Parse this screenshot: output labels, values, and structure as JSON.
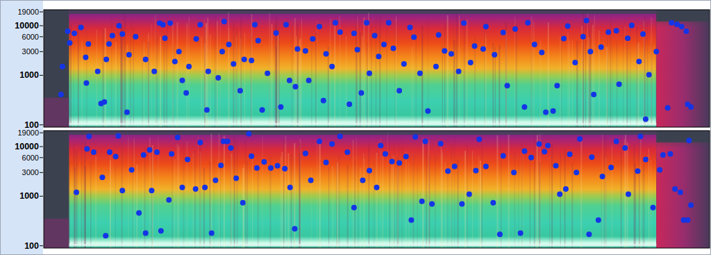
{
  "chart_data": [
    {
      "type": "scatter",
      "log": "y",
      "tick_labels": "y",
      "color": "#1434e6",
      "marker": "circle",
      "xlim": [
        0,
        100
      ],
      "ylim": [
        90,
        21000
      ],
      "yticks": [
        100,
        1000,
        3000,
        6000,
        10000,
        19000
      ],
      "x": [
        2.6,
        2.8,
        3.6,
        3.9,
        4.6,
        5.6,
        6.3,
        6.4,
        6.7,
        8.1,
        8.6,
        9.1,
        9.4,
        9.8,
        10.3,
        11.3,
        11.8,
        12.5,
        12.8,
        13.8,
        15.3,
        16.6,
        17.4,
        17.9,
        18.2,
        19.0,
        19.7,
        20.3,
        20.8,
        21.4,
        21.8,
        22.9,
        23.5,
        24.5,
        24.7,
        26.2,
        26.8,
        27.1,
        27.8,
        28.5,
        29.5,
        30.1,
        31.2,
        31.7,
        32.2,
        32.8,
        33.6,
        34.9,
        35.6,
        36.4,
        36.9,
        37.8,
        38.1,
        39.3,
        39.8,
        40.4,
        41.4,
        42.0,
        42.4,
        43.3,
        43.8,
        44.5,
        45.9,
        46.6,
        47.1,
        47.7,
        48.5,
        48.9,
        49.7,
        50.3,
        51.1,
        51.8,
        52.5,
        53.4,
        54.1,
        55.0,
        55.6,
        56.5,
        57.7,
        58.9,
        59.3,
        60.2,
        61.2,
        62.3,
        63.1,
        64.1,
        64.7,
        66.0,
        66.4,
        67.7,
        69.0,
        69.6,
        70.8,
        72.2,
        72.7,
        73.7,
        74.8,
        75.4,
        76.5,
        77.1,
        78.1,
        78.7,
        79.8,
        81.0,
        81.5,
        82.1,
        82.6,
        83.7,
        84.8,
        86.0,
        86.4,
        87.7,
        88.3,
        89.4,
        90.0,
        90.4,
        90.9,
        92.0,
        93.7,
        94.3,
        95.1,
        95.8,
        96.5,
        96.7,
        97.2
      ],
      "values": [
        410,
        1500,
        7700,
        4500,
        7000,
        9200,
        2300,
        700,
        4300,
        1200,
        270,
        290,
        2100,
        4300,
        6300,
        10000,
        6800,
        180,
        2600,
        6000,
        2100,
        1200,
        11300,
        10500,
        5600,
        11300,
        1900,
        3000,
        790,
        440,
        1500,
        5400,
        10500,
        200,
        1200,
        890,
        3000,
        12100,
        4200,
        1700,
        490,
        2100,
        2000,
        10500,
        5000,
        200,
        1100,
        7100,
        230,
        10500,
        790,
        590,
        3400,
        3100,
        790,
        5400,
        9600,
        310,
        2700,
        1500,
        11500,
        7400,
        260,
        7000,
        3300,
        440,
        11500,
        1100,
        6300,
        2400,
        4200,
        11500,
        3500,
        490,
        1700,
        9200,
        5900,
        1100,
        190,
        1500,
        6500,
        3100,
        2700,
        1200,
        11300,
        1800,
        3900,
        3400,
        9600,
        2600,
        7300,
        620,
        8600,
        230,
        11500,
        4200,
        2900,
        180,
        190,
        620,
        5500,
        9800,
        1800,
        6000,
        12700,
        3000,
        410,
        3700,
        7400,
        7900,
        660,
        5600,
        10200,
        1900,
        6800,
        130,
        1030,
        3000,
        220,
        11500,
        10700,
        9600,
        7700,
        260,
        230
      ]
    },
    {
      "type": "scatter",
      "log": "y",
      "tick_labels": "y",
      "color": "#1434e6",
      "marker": "circle",
      "xlim": [
        0,
        100
      ],
      "ylim": [
        90,
        21000
      ],
      "yticks": [
        100,
        1000,
        3000,
        6000,
        10000,
        19000
      ],
      "x": [
        4.9,
        6.5,
        6.8,
        7.5,
        8.8,
        9.3,
        9.9,
        10.8,
        11.2,
        11.8,
        13.2,
        14.3,
        15.0,
        15.3,
        15.9,
        16.2,
        17.0,
        17.6,
        18.8,
        19.2,
        20.1,
        20.8,
        21.6,
        22.8,
        23.5,
        24.2,
        25.2,
        25.8,
        26.6,
        27.0,
        27.6,
        28.1,
        28.9,
        29.9,
        30.8,
        31.2,
        32.0,
        33.1,
        34.1,
        35.1,
        36.2,
        37.0,
        37.7,
        39.3,
        40.1,
        41.4,
        42.4,
        43.3,
        44.5,
        45.6,
        46.6,
        47.9,
        48.9,
        50.0,
        50.6,
        51.3,
        52.3,
        53.4,
        54.4,
        55.2,
        55.8,
        56.8,
        57.3,
        58.3,
        59.6,
        60.7,
        61.7,
        62.8,
        63.9,
        64.9,
        65.4,
        66.4,
        67.5,
        68.5,
        69.0,
        70.6,
        71.6,
        72.2,
        73.2,
        74.4,
        75.2,
        75.7,
        76.9,
        77.5,
        78.4,
        79.0,
        80.0,
        80.5,
        81.9,
        82.3,
        83.3,
        83.9,
        85.2,
        86.0,
        87.3,
        87.8,
        89.2,
        89.6,
        90.4,
        91.5,
        92.5,
        93.0,
        94.1,
        94.8,
        95.6,
        96.1,
        96.7,
        96.9,
        97.2
      ],
      "values": [
        1200,
        9000,
        16100,
        7700,
        2400,
        160,
        7700,
        6300,
        16500,
        1300,
        3400,
        460,
        6800,
        180,
        8600,
        1300,
        7700,
        200,
        840,
        7100,
        15300,
        1500,
        5500,
        1400,
        12100,
        1500,
        180,
        2100,
        4200,
        12700,
        12700,
        9400,
        2300,
        740,
        18100,
        6400,
        3700,
        4900,
        3700,
        4100,
        3600,
        1500,
        220,
        7300,
        2100,
        12700,
        4800,
        11300,
        16100,
        7700,
        590,
        2100,
        3300,
        1500,
        10500,
        7100,
        5000,
        4700,
        6300,
        330,
        15700,
        790,
        12700,
        700,
        11500,
        3200,
        4000,
        700,
        1100,
        3300,
        14000,
        4000,
        740,
        170,
        6500,
        3000,
        180,
        8100,
        6000,
        11300,
        7900,
        10500,
        4100,
        1100,
        1400,
        7000,
        3000,
        14300,
        170,
        6100,
        330,
        2500,
        3800,
        12700,
        9400,
        1100,
        3200,
        16100,
        5500,
        590,
        3400,
        6800,
        7100,
        1400,
        1200,
        330,
        330,
        13300,
        660
      ]
    }
  ]
}
